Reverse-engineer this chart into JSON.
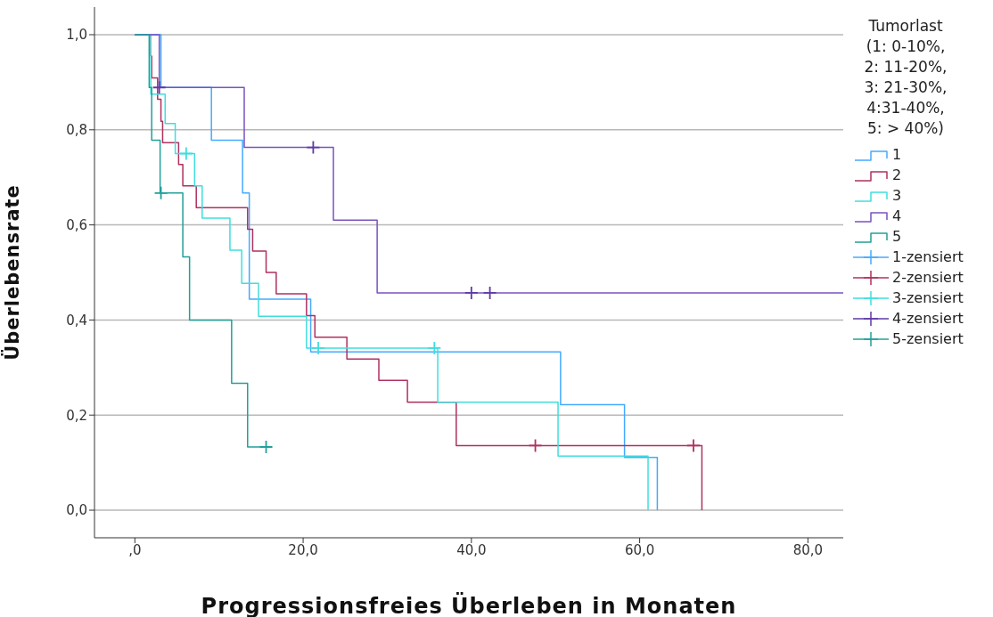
{
  "chart_data": {
    "type": "step",
    "xlabel": "Progressionsfreies Überleben in Monaten",
    "ylabel": "Überlebensrate",
    "legend_title": "Tumorlast (1: 0-10%, 2: 11-20%, 3: 21-30%, 4:31-40%, 5: > 40%)",
    "xlim": [
      -4.8,
      84.2
    ],
    "ylim": [
      -0.058,
      1.058
    ],
    "xticks": [
      {
        "value": 0,
        "label": ",0"
      },
      {
        "value": 20,
        "label": "20,0"
      },
      {
        "value": 40,
        "label": "40,0"
      },
      {
        "value": 60,
        "label": "60,0"
      },
      {
        "value": 80,
        "label": "80,0"
      }
    ],
    "yticks": [
      {
        "value": 0,
        "label": "0,0"
      },
      {
        "value": 0.2,
        "label": "0,2"
      },
      {
        "value": 0.4,
        "label": "0,4"
      },
      {
        "value": 0.6,
        "label": "0,6"
      },
      {
        "value": 0.8,
        "label": "0,8"
      },
      {
        "value": 1,
        "label": "1,0"
      }
    ],
    "grid": "y",
    "legend": "right",
    "series": [
      {
        "name": "1",
        "color": "#44aaff",
        "x": [
          0,
          3.1,
          9.1,
          12.8,
          13.6,
          20.9,
          50.6,
          58.2,
          62.1
        ],
        "values": [
          1,
          0.889,
          0.778,
          0.667,
          0.444,
          0.333,
          0.222,
          0.111,
          0
        ]
      },
      {
        "name": "2",
        "color": "#b03060",
        "x": [
          0,
          1.9,
          2.0,
          2.7,
          3.1,
          3.3,
          5.2,
          5.7,
          7.3,
          13.4,
          14.0,
          15.6,
          16.8,
          20.4,
          21.4,
          25.2,
          29.0,
          32.4,
          38.2,
          67.4
        ],
        "values": [
          1,
          0.955,
          0.909,
          0.864,
          0.818,
          0.773,
          0.727,
          0.682,
          0.636,
          0.591,
          0.545,
          0.5,
          0.455,
          0.409,
          0.364,
          0.318,
          0.273,
          0.227,
          0.136,
          0
        ]
      },
      {
        "name": "3",
        "color": "#40dede",
        "x": [
          0,
          1.9,
          3.6,
          4.8,
          7.1,
          8.0,
          11.3,
          12.7,
          14.7,
          20.4,
          36.0,
          50.3,
          61.0
        ],
        "values": [
          1,
          0.875,
          0.813,
          0.75,
          0.682,
          0.614,
          0.547,
          0.477,
          0.408,
          0.341,
          0.227,
          0.114,
          0
        ]
      },
      {
        "name": "4",
        "color": "#7a52c0",
        "x": [
          0,
          2.9,
          13.0,
          23.6,
          28.8,
          84.2
        ],
        "values": [
          1,
          0.889,
          0.763,
          0.61,
          0.457,
          0.457
        ]
      },
      {
        "name": "5",
        "color": "#22a098",
        "x": [
          0,
          1.7,
          2.0,
          3.0,
          5.7,
          6.5,
          11.5,
          13.4,
          15.6
        ],
        "values": [
          1,
          0.889,
          0.778,
          0.667,
          0.533,
          0.4,
          0.267,
          0.133,
          0.133
        ]
      },
      {
        "name": "1-zensiert",
        "type": "scatter",
        "marker": "cross",
        "color": "#44aaff"
      },
      {
        "name": "2-zensiert",
        "type": "scatter",
        "marker": "cross",
        "color": "#b03060",
        "x": [
          47.6,
          66.4
        ],
        "values": [
          0.136,
          0.136
        ]
      },
      {
        "name": "3-zensiert",
        "type": "scatter",
        "marker": "cross",
        "color": "#40dede",
        "x": [
          6.1,
          21.8,
          35.6
        ],
        "values": [
          0.75,
          0.341,
          0.341
        ]
      },
      {
        "name": "4-zensiert",
        "type": "scatter",
        "marker": "cross",
        "color": "#5e3aa8",
        "x": [
          2.9,
          21.2,
          40.0,
          42.2
        ],
        "values": [
          0.889,
          0.763,
          0.457,
          0.457
        ]
      },
      {
        "name": "5-zensiert",
        "type": "scatter",
        "marker": "cross",
        "color": "#22a098",
        "x": [
          3.1,
          15.6
        ],
        "values": [
          0.667,
          0.133
        ]
      }
    ]
  }
}
